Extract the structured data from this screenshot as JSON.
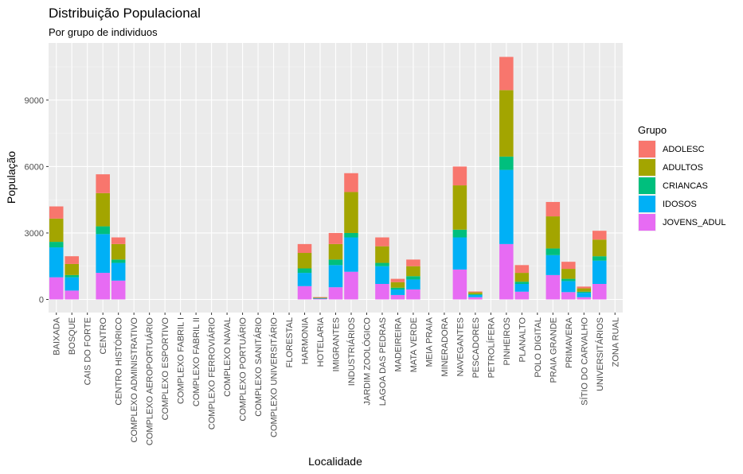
{
  "chart_data": {
    "type": "bar",
    "stacked": true,
    "title": "Distribuição Populacional",
    "subtitle": "Por grupo de individuos",
    "xlabel": "Localidade",
    "ylabel": "População",
    "ylim": [
      0,
      11300
    ],
    "yticks": [
      0,
      3000,
      6000,
      9000
    ],
    "ytick_labels": [
      "0",
      "3000",
      "6000",
      "9000"
    ],
    "grid": true,
    "legend": {
      "title": "Grupo",
      "position": "right"
    },
    "categories": [
      "BAIXADA",
      "BOSQUE",
      "CAIS DO FORTE",
      "CENTRO",
      "CENTRO HISTÓRICO",
      "COMPLEXO ADMINISTRATIVO",
      "COMPLEXO AEROPORTUÁRIO",
      "COMPLEXO ESPORTIVO",
      "COMPLEXO FABRIL I",
      "COMPLEXO FABRIL II",
      "COMPLEXO FERROVIÁRIO",
      "COMPLEXO NAVAL",
      "COMPLEXO PORTUÁRIO",
      "COMPLEXO SANITÁRIO",
      "COMPLEXO UNIVERSITÁRIO",
      "FLORESTAL",
      "HARMONIA",
      "HOTELARIA",
      "IMIGRANTES",
      "INDUSTRIÁRIOS",
      "JARDIM ZOOLÓGICO",
      "LAGOA DAS PEDRAS",
      "MADEIREIRA",
      "MATA VERDE",
      "MEIA PRAIA",
      "MINERADORA",
      "NAVEGANTES",
      "PESCADORES",
      "PETROLÍFERA",
      "PINHEIROS",
      "PLANALTO",
      "POLO DIGITAL",
      "PRAIA GRANDE",
      "PRIMAVERA",
      "SÍTIO DO CARVALHO",
      "UNIVERSITÁRIOS",
      "ZONA RUAL"
    ],
    "series": [
      {
        "name": "JOVENS_ADUL",
        "color": "#E76BF3",
        "values": [
          1000,
          400,
          0,
          1200,
          850,
          0,
          0,
          0,
          0,
          0,
          0,
          0,
          0,
          0,
          0,
          0,
          600,
          40,
          550,
          1250,
          0,
          700,
          200,
          450,
          0,
          0,
          1350,
          100,
          0,
          2500,
          350,
          0,
          1100,
          330,
          100,
          700,
          0
        ]
      },
      {
        "name": "IDOSOS",
        "color": "#00B0F6",
        "values": [
          1350,
          600,
          0,
          1750,
          800,
          0,
          0,
          0,
          0,
          0,
          0,
          0,
          0,
          0,
          0,
          0,
          600,
          20,
          1000,
          1550,
          0,
          800,
          250,
          450,
          0,
          0,
          1450,
          100,
          0,
          3350,
          350,
          0,
          900,
          500,
          200,
          1050,
          0
        ]
      },
      {
        "name": "CRIANCAS",
        "color": "#00BF7D",
        "values": [
          250,
          100,
          0,
          350,
          150,
          0,
          0,
          0,
          0,
          0,
          0,
          0,
          0,
          0,
          0,
          0,
          200,
          10,
          250,
          200,
          0,
          150,
          80,
          150,
          0,
          0,
          350,
          40,
          0,
          600,
          100,
          0,
          300,
          100,
          50,
          200,
          0
        ]
      },
      {
        "name": "ADULTOS",
        "color": "#A3A500",
        "values": [
          1050,
          500,
          0,
          1500,
          700,
          0,
          0,
          0,
          0,
          0,
          0,
          0,
          0,
          0,
          0,
          0,
          700,
          20,
          700,
          1850,
          0,
          750,
          250,
          450,
          0,
          0,
          2000,
          80,
          0,
          3000,
          400,
          0,
          1450,
          450,
          150,
          750,
          0
        ]
      },
      {
        "name": "ADOLESC",
        "color": "#F8766D",
        "values": [
          550,
          350,
          0,
          850,
          300,
          0,
          0,
          0,
          0,
          0,
          0,
          0,
          0,
          0,
          0,
          0,
          400,
          15,
          500,
          850,
          0,
          400,
          150,
          300,
          0,
          0,
          850,
          40,
          0,
          1500,
          350,
          0,
          650,
          320,
          80,
          400,
          0
        ]
      }
    ],
    "legend_order": [
      "ADOLESC",
      "ADULTOS",
      "CRIANCAS",
      "IDOSOS",
      "JOVENS_ADUL"
    ]
  }
}
